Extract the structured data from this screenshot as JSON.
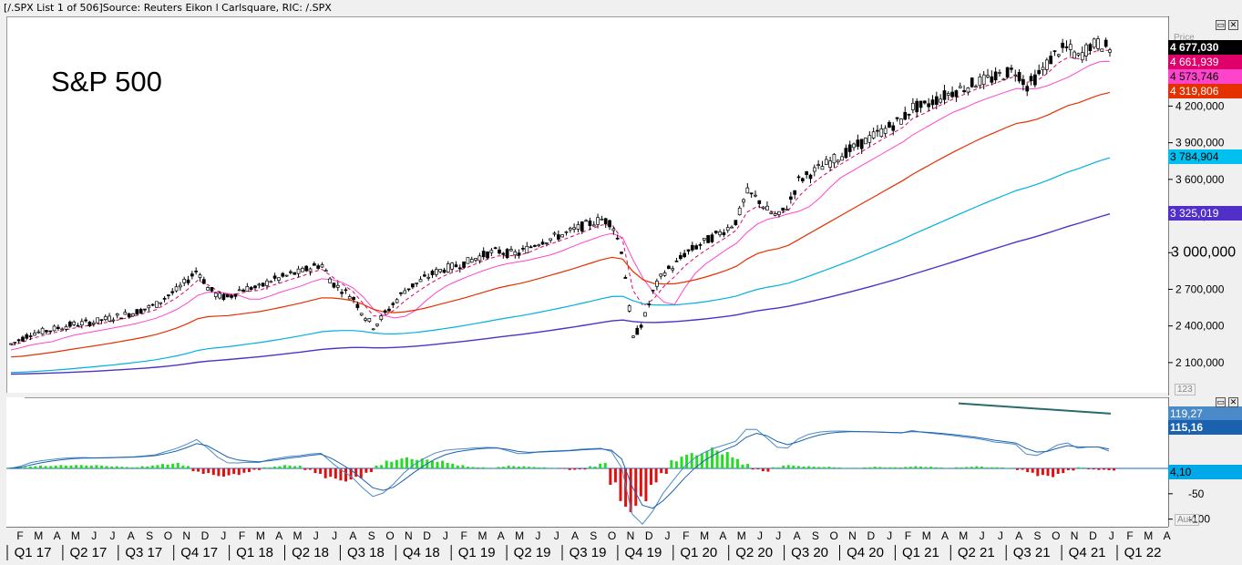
{
  "header": {
    "text": "[/.SPX List 1 of 506]Source: Reuters Eikon l Carlsquare, RIC: /.SPX"
  },
  "chart_data": {
    "type": "line",
    "title": "S&P 500",
    "price_label": "Price",
    "y_ticks": [
      2100000,
      2400000,
      2700000,
      3000000,
      3300000,
      3600000,
      3900000,
      4200000
    ],
    "y_tick_labels": [
      "2 100,000",
      "2 400,000",
      "2 700,000",
      "3 000,000",
      "3 300,000",
      "3 600,000",
      "3 900,000",
      "4 200,000"
    ],
    "ylim": [
      1950000,
      4800000
    ],
    "series": [
      {
        "name": "4 677,030",
        "color": "#000000",
        "last": 4677030,
        "values": [
          2260000,
          2300000,
          2350000,
          2360000,
          2380000,
          2400000,
          2420000,
          2430000,
          2440000,
          2460000,
          2480000,
          2500000,
          2520000,
          2550000,
          2580000,
          2650000,
          2700000,
          2780000,
          2870000,
          2720000,
          2650000,
          2640000,
          2700000,
          2720000,
          2720000,
          2780000,
          2800000,
          2830000,
          2850000,
          2890000,
          2910000,
          2760000,
          2700000,
          2640000,
          2500000,
          2400000,
          2500000,
          2600000,
          2700000,
          2750000,
          2800000,
          2850000,
          2880000,
          2900000,
          2930000,
          2970000,
          3000000,
          3020000,
          3000000,
          3000000,
          3050000,
          3100000,
          3120000,
          3150000,
          3180000,
          3220000,
          3250000,
          3280000,
          3250000,
          3000000,
          2300000,
          2450000,
          2700000,
          2850000,
          2900000,
          3000000,
          3050000,
          3100000,
          3150000,
          3200000,
          3270000,
          3500000,
          3450000,
          3350000,
          3300000,
          3400000,
          3600000,
          3650000,
          3700000,
          3750000,
          3800000,
          3850000,
          3900000,
          3950000,
          4000000,
          4050000,
          4100000,
          4200000,
          4200000,
          4250000,
          4290000,
          4330000,
          4360000,
          4400000,
          4420000,
          4440000,
          4480000,
          4500000,
          4370000,
          4450000,
          4560000,
          4660000,
          4680000,
          4600000,
          4700000,
          4720000,
          4677030
        ]
      },
      {
        "name": "4 661,939",
        "color": "#e0006a",
        "last": 4661939
      },
      {
        "name": "4 573,746",
        "color": "#ff44cc",
        "last": 4573746
      },
      {
        "name": "4 319,806",
        "color": "#e53000",
        "last": 4319806
      },
      {
        "name": "3 784,904",
        "color": "#00b0e0",
        "last": 3784904
      },
      {
        "name": "3 325,019",
        "color": "#5030c8",
        "last": 3325019
      }
    ],
    "indicator": {
      "y_ticks": [
        -100,
        -50
      ],
      "y_tick_labels": [
        "-100",
        "-50"
      ],
      "ylim": [
        -115,
        140
      ],
      "series": [
        {
          "name": "119,27",
          "color": "#4a8ac8",
          "last": 119.27
        },
        {
          "name": "115,16",
          "color": "#1a62b0",
          "last": 115.16
        },
        {
          "name": "4,10",
          "color": "#00a8e8",
          "last": 4.1
        }
      ],
      "histogram": [
        2,
        3,
        4,
        5,
        5,
        6,
        6,
        6,
        6,
        5,
        4,
        3,
        2,
        4,
        6,
        8,
        10,
        5,
        -6,
        -10,
        -14,
        -15,
        -12,
        -8,
        -3,
        2,
        4,
        6,
        5,
        -3,
        -10,
        -18,
        -22,
        -24,
        -18,
        -8,
        6,
        14,
        18,
        20,
        18,
        16,
        14,
        10,
        6,
        3,
        2,
        1,
        3,
        5,
        4,
        3,
        2,
        1,
        -1,
        -3,
        -2,
        4,
        10,
        -30,
        -70,
        -80,
        -60,
        -30,
        -10,
        15,
        25,
        28,
        32,
        38,
        30,
        20,
        8,
        -2,
        -6,
        2,
        6,
        5,
        4,
        3,
        3,
        2,
        1,
        1,
        2,
        3,
        2,
        2,
        3,
        4,
        3,
        2,
        1,
        2,
        3,
        4,
        2,
        2,
        1,
        -3,
        -8,
        -14,
        -16,
        -10,
        -4,
        2,
        -2,
        -3,
        -4
      ]
    },
    "time_axis": {
      "months": [
        "F",
        "M",
        "A",
        "M",
        "J",
        "J",
        "A",
        "S",
        "O",
        "N",
        "D",
        "J",
        "F",
        "M",
        "A",
        "M",
        "J",
        "J",
        "A",
        "S",
        "O",
        "N",
        "D",
        "J",
        "F",
        "M",
        "A",
        "M",
        "J",
        "J",
        "A",
        "S",
        "O",
        "N",
        "D",
        "J",
        "F",
        "M",
        "A",
        "M",
        "J",
        "J",
        "A",
        "S",
        "O",
        "N",
        "D",
        "J",
        "F",
        "M",
        "A",
        "M",
        "J",
        "J",
        "A",
        "S",
        "O",
        "N",
        "D",
        "J",
        "F",
        "M",
        "A"
      ],
      "quarters": [
        "Q1 17",
        "Q2 17",
        "Q3 17",
        "Q4 17",
        "Q1 18",
        "Q2 18",
        "Q3 18",
        "Q4 18",
        "Q1 19",
        "Q2 19",
        "Q3 19",
        "Q4 19",
        "Q1 20",
        "Q2 20",
        "Q3 20",
        "Q4 20",
        "Q1 21",
        "Q2 21",
        "Q3 21",
        "Q4 21",
        "Q1 22"
      ]
    },
    "auto_label": "Auto",
    "scale_label": "123",
    "grid": false
  }
}
